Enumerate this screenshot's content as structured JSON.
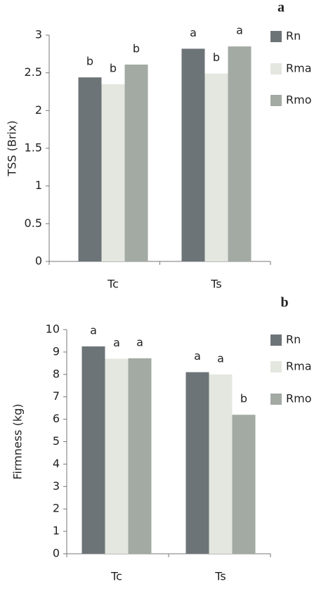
{
  "chart_data": [
    {
      "type": "bar",
      "panel": "a",
      "ylabel": "TSS (Brix)",
      "categories": [
        "Tc",
        "Ts"
      ],
      "series": [
        {
          "name": "Rn",
          "color": "#6d7478",
          "values": [
            2.44,
            2.82
          ],
          "annotations": [
            "b",
            "a"
          ]
        },
        {
          "name": "Rma",
          "color": "#e4e7df",
          "values": [
            2.35,
            2.49
          ],
          "annotations": [
            "b",
            "b"
          ]
        },
        {
          "name": "Rmo",
          "color": "#a3a9a3",
          "values": [
            2.61,
            2.85
          ],
          "annotations": [
            "b",
            "a"
          ]
        }
      ],
      "ylim": [
        0,
        3
      ],
      "yticks": [
        0,
        0.5,
        1,
        1.5,
        2,
        2.5,
        3
      ],
      "grid": false,
      "legend": "right"
    },
    {
      "type": "bar",
      "panel": "b",
      "ylabel": "Firmness (kg)",
      "categories": [
        "Tc",
        "Ts"
      ],
      "series": [
        {
          "name": "Rn",
          "color": "#6d7478",
          "values": [
            9.25,
            8.1
          ],
          "annotations": [
            "a",
            "a"
          ]
        },
        {
          "name": "Rma",
          "color": "#e4e7df",
          "values": [
            8.7,
            8.0
          ],
          "annotations": [
            "a",
            "a"
          ]
        },
        {
          "name": "Rmo",
          "color": "#a3a9a3",
          "values": [
            8.72,
            6.2
          ],
          "annotations": [
            "a",
            "b"
          ]
        }
      ],
      "ylim": [
        0,
        10
      ],
      "yticks": [
        0,
        1,
        2,
        3,
        4,
        5,
        6,
        7,
        8,
        9,
        10
      ],
      "grid": false,
      "legend": "right"
    }
  ]
}
